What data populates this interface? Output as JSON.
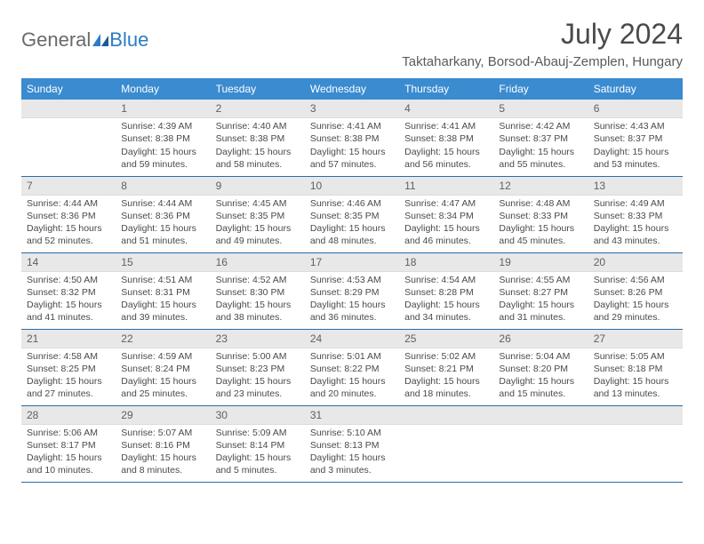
{
  "logo": {
    "text1": "General",
    "text2": "Blue"
  },
  "title": "July 2024",
  "location": "Taktaharkany, Borsod-Abauj-Zemplen, Hungary",
  "colors": {
    "header_bg": "#3a8bd0",
    "header_text": "#ffffff",
    "daynum_bg": "#e8e8e8",
    "text": "#4a4a4a",
    "row_border": "#2a6ca8"
  },
  "weekdays": [
    "Sunday",
    "Monday",
    "Tuesday",
    "Wednesday",
    "Thursday",
    "Friday",
    "Saturday"
  ],
  "start_offset": 1,
  "days": [
    {
      "n": 1,
      "sunrise": "4:39 AM",
      "sunset": "8:38 PM",
      "dl": "15 hours and 59 minutes."
    },
    {
      "n": 2,
      "sunrise": "4:40 AM",
      "sunset": "8:38 PM",
      "dl": "15 hours and 58 minutes."
    },
    {
      "n": 3,
      "sunrise": "4:41 AM",
      "sunset": "8:38 PM",
      "dl": "15 hours and 57 minutes."
    },
    {
      "n": 4,
      "sunrise": "4:41 AM",
      "sunset": "8:38 PM",
      "dl": "15 hours and 56 minutes."
    },
    {
      "n": 5,
      "sunrise": "4:42 AM",
      "sunset": "8:37 PM",
      "dl": "15 hours and 55 minutes."
    },
    {
      "n": 6,
      "sunrise": "4:43 AM",
      "sunset": "8:37 PM",
      "dl": "15 hours and 53 minutes."
    },
    {
      "n": 7,
      "sunrise": "4:44 AM",
      "sunset": "8:36 PM",
      "dl": "15 hours and 52 minutes."
    },
    {
      "n": 8,
      "sunrise": "4:44 AM",
      "sunset": "8:36 PM",
      "dl": "15 hours and 51 minutes."
    },
    {
      "n": 9,
      "sunrise": "4:45 AM",
      "sunset": "8:35 PM",
      "dl": "15 hours and 49 minutes."
    },
    {
      "n": 10,
      "sunrise": "4:46 AM",
      "sunset": "8:35 PM",
      "dl": "15 hours and 48 minutes."
    },
    {
      "n": 11,
      "sunrise": "4:47 AM",
      "sunset": "8:34 PM",
      "dl": "15 hours and 46 minutes."
    },
    {
      "n": 12,
      "sunrise": "4:48 AM",
      "sunset": "8:33 PM",
      "dl": "15 hours and 45 minutes."
    },
    {
      "n": 13,
      "sunrise": "4:49 AM",
      "sunset": "8:33 PM",
      "dl": "15 hours and 43 minutes."
    },
    {
      "n": 14,
      "sunrise": "4:50 AM",
      "sunset": "8:32 PM",
      "dl": "15 hours and 41 minutes."
    },
    {
      "n": 15,
      "sunrise": "4:51 AM",
      "sunset": "8:31 PM",
      "dl": "15 hours and 39 minutes."
    },
    {
      "n": 16,
      "sunrise": "4:52 AM",
      "sunset": "8:30 PM",
      "dl": "15 hours and 38 minutes."
    },
    {
      "n": 17,
      "sunrise": "4:53 AM",
      "sunset": "8:29 PM",
      "dl": "15 hours and 36 minutes."
    },
    {
      "n": 18,
      "sunrise": "4:54 AM",
      "sunset": "8:28 PM",
      "dl": "15 hours and 34 minutes."
    },
    {
      "n": 19,
      "sunrise": "4:55 AM",
      "sunset": "8:27 PM",
      "dl": "15 hours and 31 minutes."
    },
    {
      "n": 20,
      "sunrise": "4:56 AM",
      "sunset": "8:26 PM",
      "dl": "15 hours and 29 minutes."
    },
    {
      "n": 21,
      "sunrise": "4:58 AM",
      "sunset": "8:25 PM",
      "dl": "15 hours and 27 minutes."
    },
    {
      "n": 22,
      "sunrise": "4:59 AM",
      "sunset": "8:24 PM",
      "dl": "15 hours and 25 minutes."
    },
    {
      "n": 23,
      "sunrise": "5:00 AM",
      "sunset": "8:23 PM",
      "dl": "15 hours and 23 minutes."
    },
    {
      "n": 24,
      "sunrise": "5:01 AM",
      "sunset": "8:22 PM",
      "dl": "15 hours and 20 minutes."
    },
    {
      "n": 25,
      "sunrise": "5:02 AM",
      "sunset": "8:21 PM",
      "dl": "15 hours and 18 minutes."
    },
    {
      "n": 26,
      "sunrise": "5:04 AM",
      "sunset": "8:20 PM",
      "dl": "15 hours and 15 minutes."
    },
    {
      "n": 27,
      "sunrise": "5:05 AM",
      "sunset": "8:18 PM",
      "dl": "15 hours and 13 minutes."
    },
    {
      "n": 28,
      "sunrise": "5:06 AM",
      "sunset": "8:17 PM",
      "dl": "15 hours and 10 minutes."
    },
    {
      "n": 29,
      "sunrise": "5:07 AM",
      "sunset": "8:16 PM",
      "dl": "15 hours and 8 minutes."
    },
    {
      "n": 30,
      "sunrise": "5:09 AM",
      "sunset": "8:14 PM",
      "dl": "15 hours and 5 minutes."
    },
    {
      "n": 31,
      "sunrise": "5:10 AM",
      "sunset": "8:13 PM",
      "dl": "15 hours and 3 minutes."
    }
  ],
  "labels": {
    "sunrise": "Sunrise:",
    "sunset": "Sunset:",
    "daylight": "Daylight:"
  }
}
